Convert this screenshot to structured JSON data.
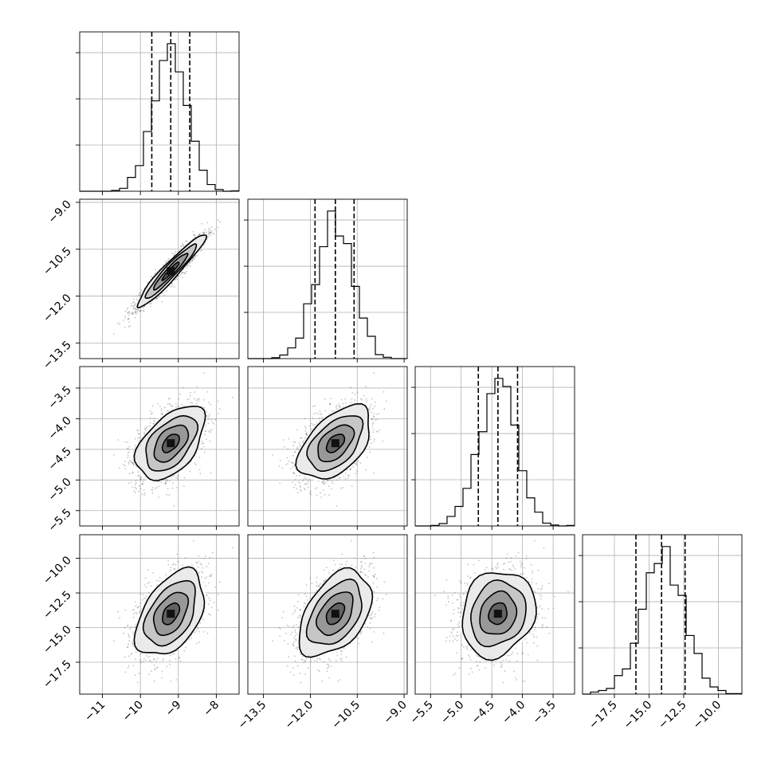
{
  "figure": {
    "background": "#ffffff",
    "line_color": "#000000",
    "sample_color": "#555555",
    "grid_color": "#b0b0b0"
  },
  "chart_data": {
    "type": "corner",
    "title": "",
    "parameters": [
      "",
      "",
      "",
      ""
    ],
    "ranges": [
      [
        -11.6,
        -7.4
      ],
      [
        -14.0,
        -8.9
      ],
      [
        -5.75,
        -3.15
      ],
      [
        -19.8,
        -8.3
      ]
    ],
    "means": [
      -9.2,
      -11.2,
      -4.4,
      -14.0
    ],
    "sds": [
      0.45,
      0.58,
      0.3,
      1.55
    ],
    "quantiles": [
      [
        -9.7,
        -9.2,
        -8.7
      ],
      [
        -11.85,
        -11.2,
        -10.6
      ],
      [
        -4.72,
        -4.4,
        -4.08
      ],
      [
        -15.95,
        -14.1,
        -12.4
      ]
    ],
    "correlations": [
      [
        1.0,
        0.95,
        0.5,
        0.45
      ],
      [
        0.95,
        1.0,
        0.5,
        0.45
      ],
      [
        0.5,
        0.5,
        1.0,
        0.15
      ],
      [
        0.45,
        0.45,
        0.15,
        1.0
      ]
    ],
    "x_ticks": [
      {
        "values": [
          -11,
          -10,
          -9,
          -8
        ],
        "labels": [
          "−11",
          "−10",
          "−9",
          "−8"
        ]
      },
      {
        "values": [
          -13.5,
          -12.0,
          -10.5,
          -9.0
        ],
        "labels": [
          "−13.5",
          "−12.0",
          "−10.5",
          "−9.0"
        ]
      },
      {
        "values": [
          -5.5,
          -5.0,
          -4.5,
          -4.0,
          -3.5
        ],
        "labels": [
          "−5.5",
          "−5.0",
          "−4.5",
          "−4.0",
          "−3.5"
        ]
      },
      {
        "values": [
          -17.5,
          -15.0,
          -12.5,
          -10.0
        ],
        "labels": [
          "−17.5",
          "−15.0",
          "−12.5",
          "−10.0"
        ]
      }
    ],
    "y_ticks": [
      {
        "values": [],
        "labels": []
      },
      {
        "values": [
          -9.0,
          -10.5,
          -12.0,
          -13.5
        ],
        "labels": [
          "−9.0",
          "−10.5",
          "−12.0",
          "−13.5"
        ]
      },
      {
        "values": [
          -3.5,
          -4.0,
          -4.5,
          -5.0,
          -5.5
        ],
        "labels": [
          "−3.5",
          "−4.0",
          "−4.5",
          "−5.0",
          "−5.5"
        ]
      },
      {
        "values": [
          -10.0,
          -12.5,
          -15.0,
          -17.5
        ],
        "labels": [
          "−10.0",
          "−12.5",
          "−15.0",
          "−17.5"
        ]
      }
    ],
    "histogram": {
      "bins": 20,
      "density_ticks": 3
    },
    "contour_levels": [
      0.5,
      1.0,
      1.5,
      2.0
    ],
    "n_samples": 1800,
    "grid": true
  }
}
